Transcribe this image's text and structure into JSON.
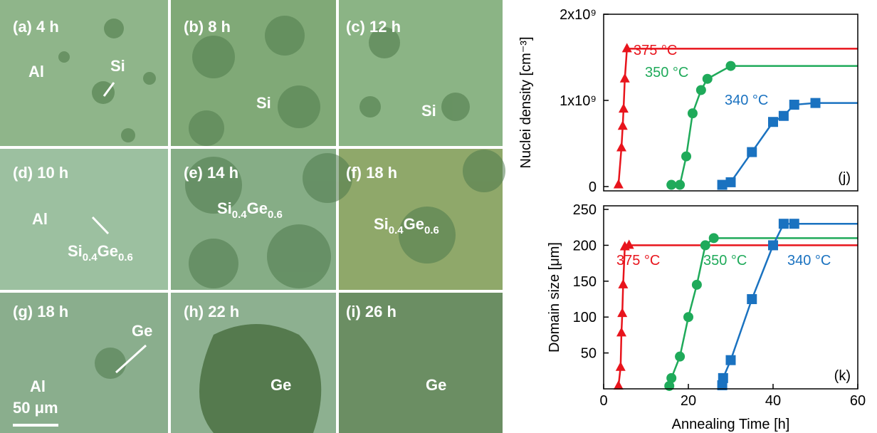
{
  "micrographs": [
    {
      "label": "(a) 4 h",
      "notes": [
        [
          "Al"
        ],
        [
          "Si"
        ]
      ]
    },
    {
      "label": "(b) 8 h",
      "notes": [
        [
          "Si"
        ]
      ]
    },
    {
      "label": "(c) 12 h",
      "notes": [
        [
          "Si"
        ]
      ]
    },
    {
      "label": "(d) 10 h",
      "notes": [
        [
          "Al"
        ],
        [
          "Si",
          "0.4",
          "Ge",
          "0.6"
        ]
      ]
    },
    {
      "label": "(e) 14 h",
      "notes": [
        [
          "Si",
          "0.4",
          "Ge",
          "0.6"
        ]
      ]
    },
    {
      "label": "(f) 18 h",
      "notes": [
        [
          "Si",
          "0.4",
          "Ge",
          "0.6"
        ]
      ]
    },
    {
      "label": "(g) 18 h",
      "notes": [
        [
          "Ge"
        ],
        [
          "Al"
        ]
      ],
      "scale_bar": "50 μm"
    },
    {
      "label": "(h) 22 h",
      "notes": [
        [
          "Ge"
        ]
      ]
    },
    {
      "label": "(i) 26 h",
      "notes": [
        [
          "Ge"
        ]
      ]
    }
  ],
  "chart_data": [
    {
      "type": "line",
      "panel_label": "(j)",
      "y_label": "Nuclei density [cm⁻³]",
      "xlim": [
        0,
        60
      ],
      "ylim": [
        -50000000.0,
        2000000000.0
      ],
      "yticks": [
        0,
        {
          "value": 1000000000.0,
          "label": "1x10⁹"
        },
        {
          "value": 2000000000.0,
          "label": "2x10⁹"
        }
      ],
      "extend_to_xmax": true,
      "series": [
        {
          "name": "375 °C",
          "color": "#e8141c",
          "marker": "triangle",
          "x": [
            3.5,
            4.2,
            4.5,
            4.7,
            5,
            5.5
          ],
          "values": [
            20000000.0,
            450000000.0,
            700000000.0,
            900000000.0,
            1250000000.0,
            1600000000.0
          ]
        },
        {
          "name": "350 °C",
          "color": "#1faa5a",
          "marker": "circle",
          "x": [
            16,
            18,
            19.5,
            21,
            23,
            24.5,
            30
          ],
          "values": [
            20000000.0,
            20000000.0,
            350000000.0,
            850000000.0,
            1120000000.0,
            1250000000.0,
            1400000000.0
          ]
        },
        {
          "name": "340 °C",
          "color": "#1a72c0",
          "marker": "square",
          "x": [
            28,
            30,
            35,
            40,
            42.5,
            45,
            50
          ],
          "values": [
            20000000.0,
            50000000.0,
            400000000.0,
            750000000.0,
            820000000.0,
            950000000.0,
            970000000.0
          ]
        }
      ]
    },
    {
      "type": "line",
      "panel_label": "(k)",
      "y_label": "Domain size [μm]",
      "x_label": "Annealing Time [h]",
      "xlim": [
        0,
        60
      ],
      "xticks": [
        0,
        20,
        40,
        60
      ],
      "ylim": [
        0,
        255
      ],
      "yticks": [
        50,
        100,
        150,
        200,
        250
      ],
      "extend_to_xmax": true,
      "series": [
        {
          "name": "375 °C",
          "color": "#e8141c",
          "marker": "triangle",
          "x": [
            3.5,
            4,
            4.2,
            4.4,
            4.6,
            5,
            6
          ],
          "values": [
            4,
            30,
            78,
            105,
            145,
            198,
            200
          ]
        },
        {
          "name": "350 °C",
          "color": "#1faa5a",
          "marker": "circle",
          "x": [
            15.5,
            16,
            18,
            20,
            22,
            24,
            26
          ],
          "values": [
            4,
            15,
            45,
            100,
            145,
            200,
            210
          ]
        },
        {
          "name": "340 °C",
          "color": "#1a72c0",
          "marker": "square",
          "x": [
            28,
            28.2,
            30,
            35,
            40,
            42.5,
            45
          ],
          "values": [
            5,
            15,
            40,
            125,
            200,
            230,
            230
          ]
        }
      ]
    }
  ]
}
